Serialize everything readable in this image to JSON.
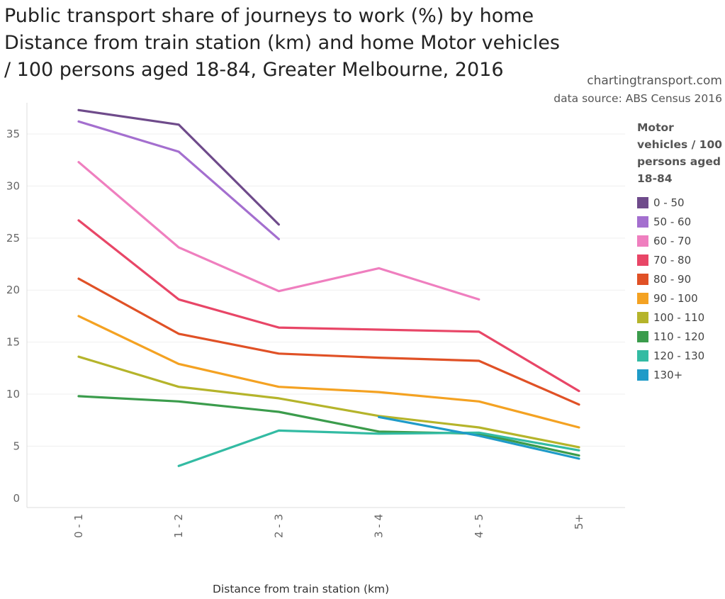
{
  "title": "Public transport share of journeys to work (%) by home Distance from train station (km) and home Motor vehicles / 100 persons aged 18-84, Greater Melbourne, 2016",
  "credit_site": "chartingtransport.com",
  "credit_source": "data source: ABS Census 2016",
  "chart_data": {
    "type": "line",
    "title": "Public transport share of journeys to work (%) by home Distance from train station (km) and home Motor vehicles / 100 persons aged 18-84, Greater Melbourne, 2016",
    "xlabel": "Distance from train station (km)",
    "ylabel": "",
    "categories": [
      "0 - 1",
      "1 - 2",
      "2 - 3",
      "3 - 4",
      "4 - 5",
      "5+"
    ],
    "ylim": [
      0,
      38
    ],
    "yticks": [
      0,
      5,
      10,
      15,
      20,
      25,
      30,
      35
    ],
    "legend_title": "Motor vehicles / 100 persons aged 18-84",
    "legend_position": "right",
    "series": [
      {
        "name": "0 - 50",
        "color": "#6f4b8b",
        "values": [
          37.3,
          35.9,
          26.3,
          null,
          null,
          null
        ]
      },
      {
        "name": "50 - 60",
        "color": "#a46fcf",
        "values": [
          36.2,
          33.3,
          24.9,
          null,
          null,
          null
        ]
      },
      {
        "name": "60 - 70",
        "color": "#ef7fbf",
        "values": [
          32.3,
          24.1,
          19.9,
          22.1,
          19.1,
          null
        ]
      },
      {
        "name": "70 - 80",
        "color": "#e84667",
        "values": [
          26.7,
          19.1,
          16.4,
          16.2,
          16.0,
          10.3
        ]
      },
      {
        "name": "80 - 90",
        "color": "#e05126",
        "values": [
          21.1,
          15.8,
          13.9,
          13.5,
          13.2,
          9.0
        ]
      },
      {
        "name": "90 - 100",
        "color": "#f4a222",
        "values": [
          17.5,
          12.9,
          10.7,
          10.2,
          9.3,
          6.8
        ]
      },
      {
        "name": "100 - 110",
        "color": "#b5b42b",
        "values": [
          13.6,
          10.7,
          9.6,
          7.9,
          6.8,
          4.9
        ]
      },
      {
        "name": "110 - 120",
        "color": "#3b9c4c",
        "values": [
          9.8,
          9.3,
          8.3,
          6.4,
          6.2,
          4.1
        ]
      },
      {
        "name": "120 - 130",
        "color": "#33bba3",
        "values": [
          null,
          3.1,
          6.5,
          6.2,
          6.3,
          4.6
        ]
      },
      {
        "name": "130+",
        "color": "#1f9bc8",
        "values": [
          null,
          null,
          null,
          7.8,
          6.0,
          3.8
        ]
      }
    ]
  }
}
